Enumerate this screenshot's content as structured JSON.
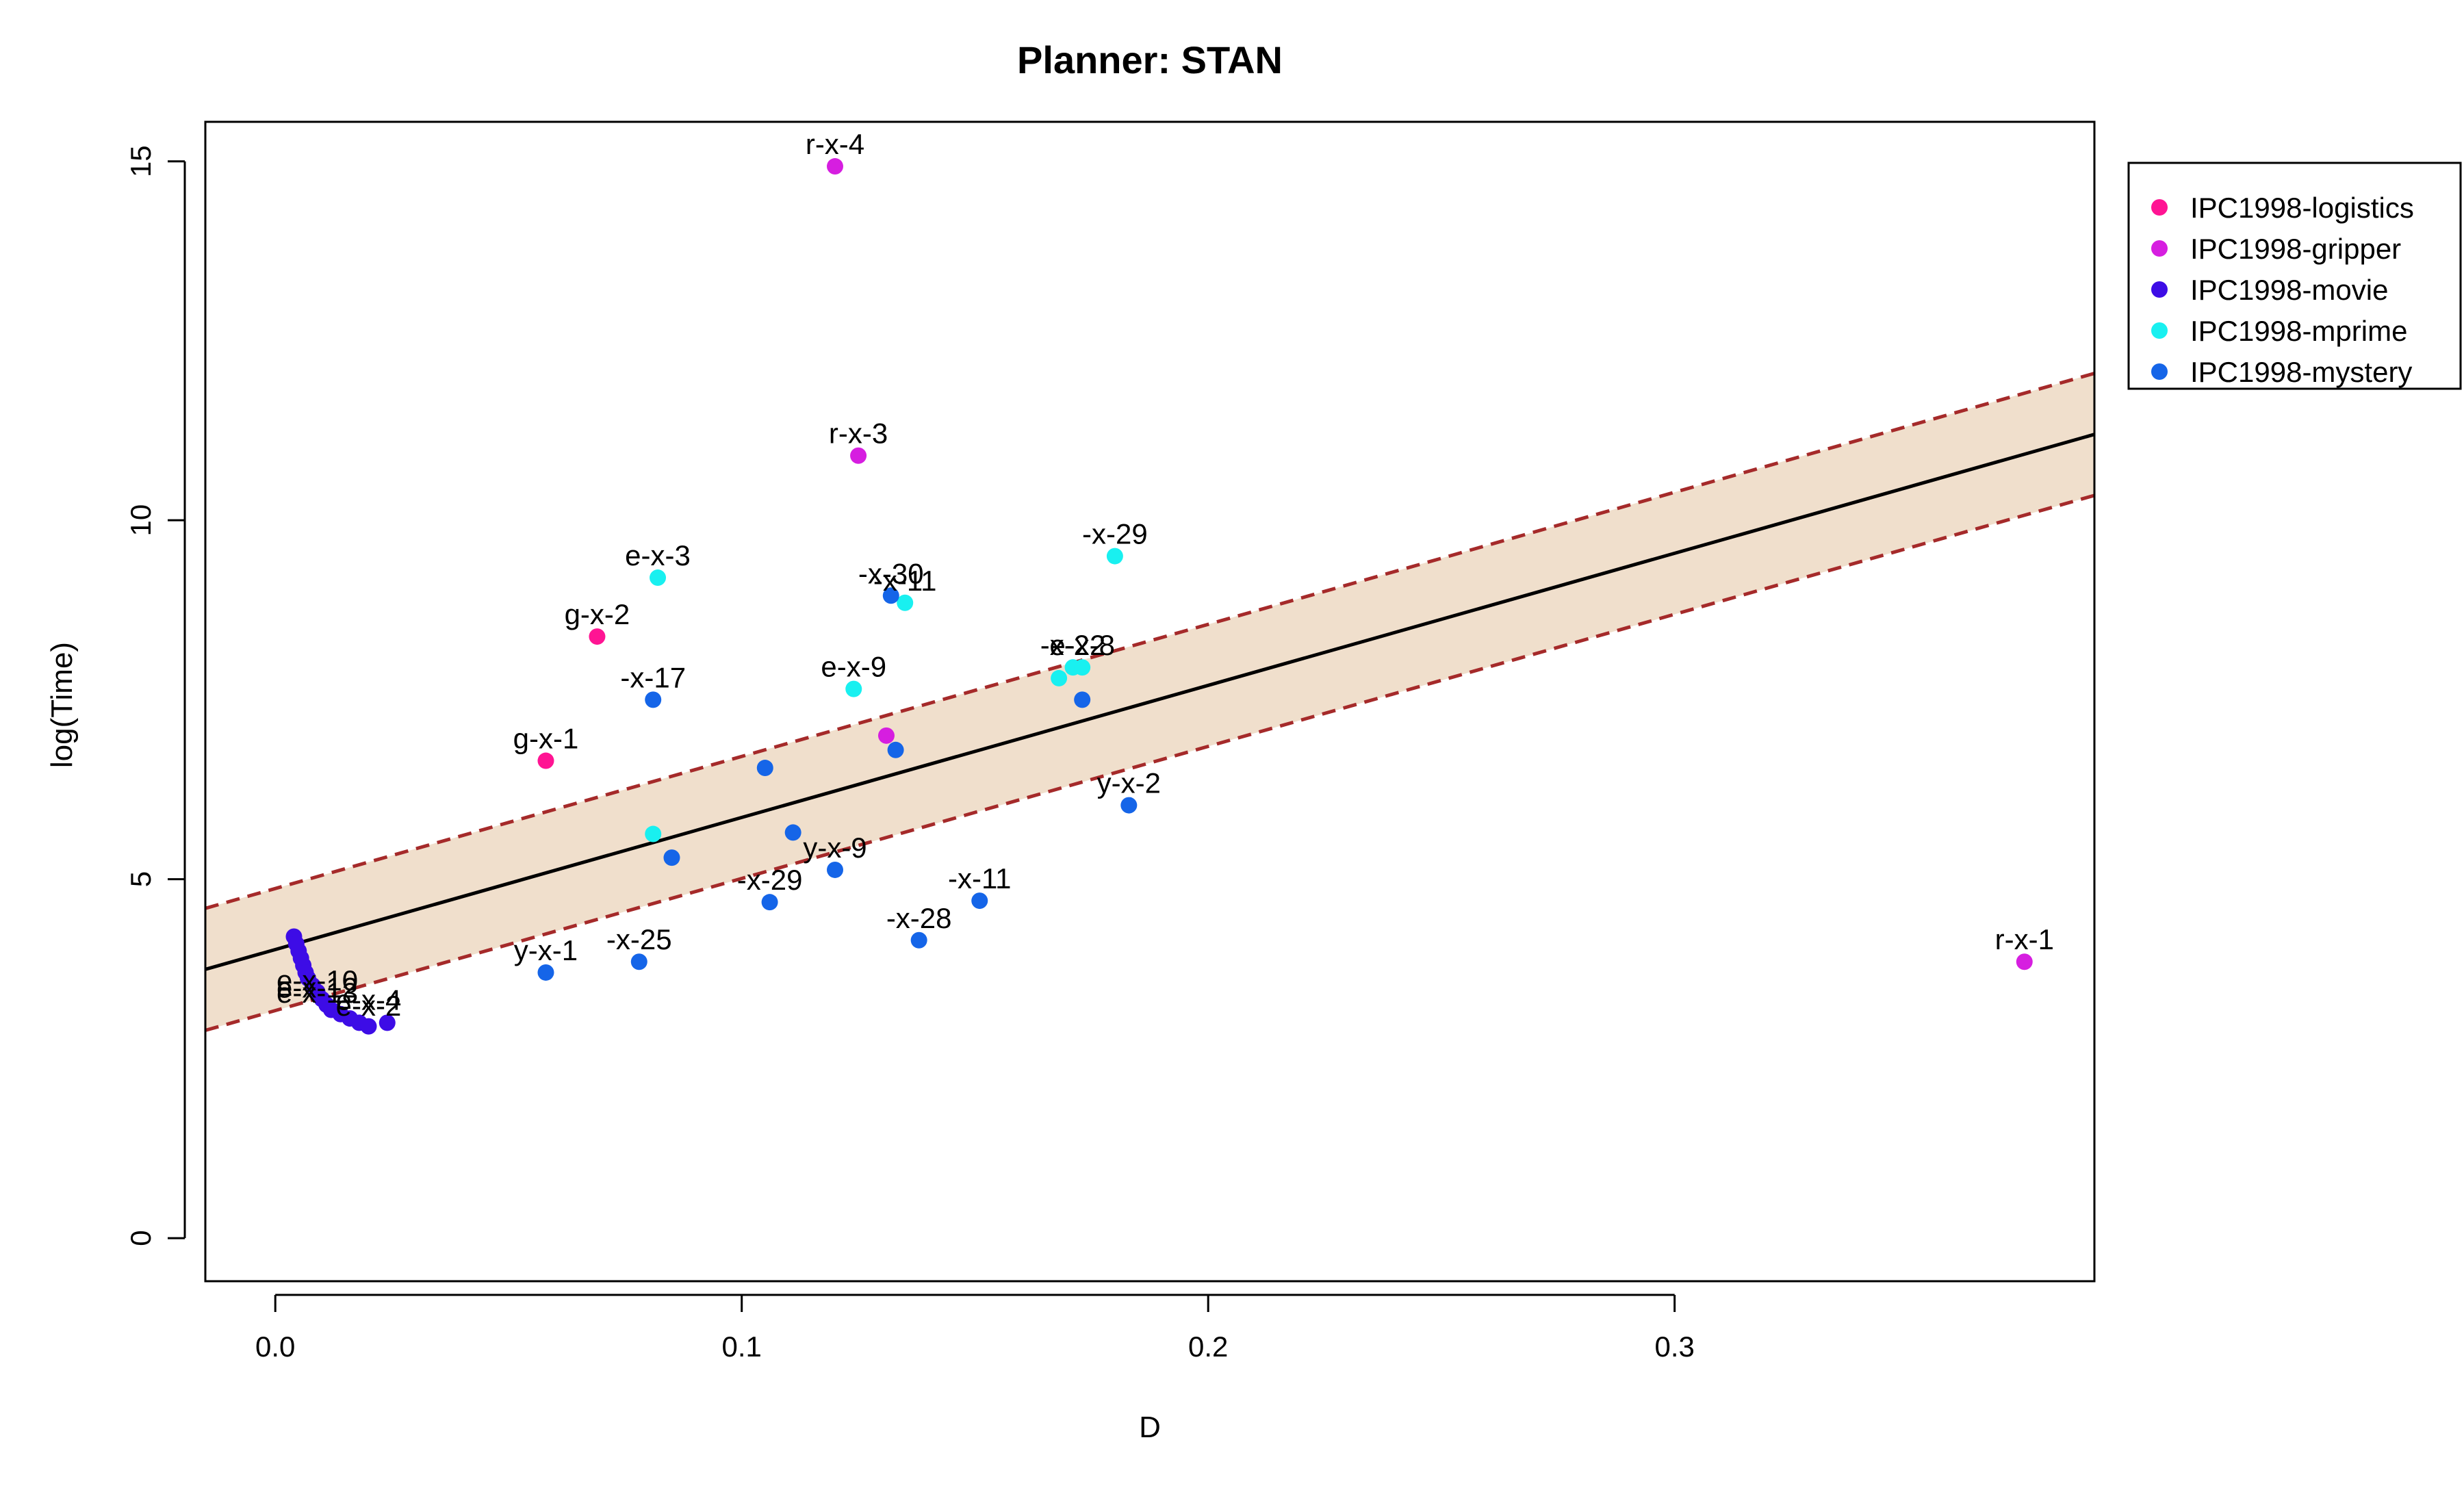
{
  "chart_data": {
    "type": "scatter",
    "title": "Planner: STAN",
    "xlabel": "D",
    "ylabel": "log(Time)",
    "xlim": [
      -0.015,
      0.39
    ],
    "ylim": [
      -0.6,
      15.55
    ],
    "x_ticks": [
      0.0,
      0.1,
      0.2,
      0.3
    ],
    "x_tick_labels": [
      "0.0",
      "0.1",
      "0.2",
      "0.3"
    ],
    "y_ticks": [
      0,
      5,
      10,
      15
    ],
    "y_tick_labels": [
      "0",
      "5",
      "10",
      "15"
    ],
    "grid": false,
    "legend_position": "top-right-outside",
    "fit_line": {
      "intercept": 4.02,
      "slope": 18.4,
      "band_width": 0.85,
      "line_color": "#000000",
      "band_color": "#f0dfcc",
      "band_edge_color": "#a52a2a"
    },
    "series": [
      {
        "name": "IPC1998-logistics",
        "color": "#ff1493",
        "points": [
          {
            "x": 0.069,
            "y": 8.38,
            "label": "g-x-2"
          },
          {
            "x": 0.058,
            "y": 6.65,
            "label": "g-x-1"
          }
        ]
      },
      {
        "name": "IPC1998-gripper",
        "color": "#d61ee0",
        "points": [
          {
            "x": 0.12,
            "y": 14.93,
            "label": "r-x-4"
          },
          {
            "x": 0.125,
            "y": 10.9,
            "label": "r-x-3"
          },
          {
            "x": 0.131,
            "y": 7.0,
            "label": ""
          },
          {
            "x": 0.375,
            "y": 3.85,
            "label": "r-x-1"
          }
        ]
      },
      {
        "name": "IPC1998-movie",
        "color": "#3d0ce6",
        "points": [
          {
            "x": 0.004,
            "y": 4.2,
            "label": ""
          },
          {
            "x": 0.0045,
            "y": 4.1,
            "label": ""
          },
          {
            "x": 0.005,
            "y": 4.0,
            "label": ""
          },
          {
            "x": 0.0055,
            "y": 3.9,
            "label": ""
          },
          {
            "x": 0.006,
            "y": 3.8,
            "label": ""
          },
          {
            "x": 0.0065,
            "y": 3.7,
            "label": ""
          },
          {
            "x": 0.007,
            "y": 3.62,
            "label": ""
          },
          {
            "x": 0.008,
            "y": 3.52,
            "label": ""
          },
          {
            "x": 0.009,
            "y": 3.43,
            "label": ""
          },
          {
            "x": 0.01,
            "y": 3.33,
            "label": ""
          },
          {
            "x": 0.011,
            "y": 3.25,
            "label": ""
          },
          {
            "x": 0.012,
            "y": 3.18,
            "label": ""
          },
          {
            "x": 0.014,
            "y": 3.12,
            "label": ""
          },
          {
            "x": 0.016,
            "y": 3.06,
            "label": ""
          },
          {
            "x": 0.018,
            "y": 3.0,
            "label": ""
          },
          {
            "x": 0.02,
            "y": 2.95,
            "label": ""
          },
          {
            "x": 0.024,
            "y": 3.0,
            "label": ""
          }
        ]
      },
      {
        "name": "IPC1998-mprime",
        "color": "#19f0f0",
        "points": [
          {
            "x": 0.082,
            "y": 9.2,
            "label": "e-x-3"
          },
          {
            "x": 0.18,
            "y": 9.5,
            "label": "-x-29"
          },
          {
            "x": 0.135,
            "y": 8.85,
            "label": "-x-11"
          },
          {
            "x": 0.124,
            "y": 7.65,
            "label": "e-x-9"
          },
          {
            "x": 0.168,
            "y": 7.8,
            "label": ""
          },
          {
            "x": 0.171,
            "y": 7.95,
            "label": "-x-22"
          },
          {
            "x": 0.173,
            "y": 7.95,
            "label": "e-x-8"
          },
          {
            "x": 0.081,
            "y": 5.63,
            "label": ""
          }
        ]
      },
      {
        "name": "IPC1998-mystery",
        "color": "#1565e8",
        "points": [
          {
            "x": 0.132,
            "y": 8.95,
            "label": "-x-30"
          },
          {
            "x": 0.081,
            "y": 7.5,
            "label": "-x-17"
          },
          {
            "x": 0.105,
            "y": 6.55,
            "label": ""
          },
          {
            "x": 0.133,
            "y": 6.8,
            "label": ""
          },
          {
            "x": 0.173,
            "y": 7.5,
            "label": ""
          },
          {
            "x": 0.183,
            "y": 6.03,
            "label": "y-x-2"
          },
          {
            "x": 0.111,
            "y": 5.65,
            "label": ""
          },
          {
            "x": 0.085,
            "y": 5.3,
            "label": ""
          },
          {
            "x": 0.12,
            "y": 5.13,
            "label": "y-x-9"
          },
          {
            "x": 0.106,
            "y": 4.68,
            "label": "-x-29"
          },
          {
            "x": 0.151,
            "y": 4.7,
            "label": "-x-11"
          },
          {
            "x": 0.138,
            "y": 4.15,
            "label": "-x-28"
          },
          {
            "x": 0.078,
            "y": 3.85,
            "label": "-x-25"
          },
          {
            "x": 0.058,
            "y": 3.7,
            "label": "y-x-1"
          }
        ]
      }
    ],
    "overlapping_labels": [
      {
        "x": 0.009,
        "y": 3.45,
        "label": "e-x-10"
      },
      {
        "x": 0.009,
        "y": 3.35,
        "label": "e-x-12"
      },
      {
        "x": 0.009,
        "y": 3.28,
        "label": "e-x-13"
      },
      {
        "x": 0.02,
        "y": 3.18,
        "label": "e-x-4"
      },
      {
        "x": 0.02,
        "y": 3.1,
        "label": "e-x-2"
      }
    ]
  }
}
